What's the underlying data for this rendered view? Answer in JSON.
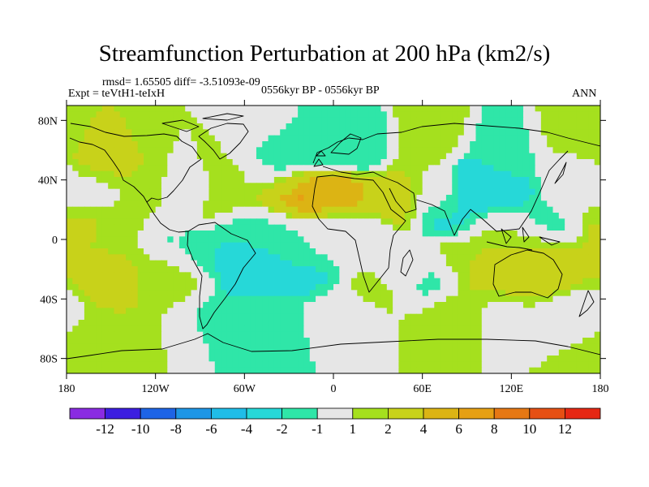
{
  "chart_data": {
    "type": "heatmap",
    "title": "Streamfunction Perturbation at 200 hPa (km2/s)",
    "stats_text": "rmsd= 1.65505 diff= -3.51093e-09",
    "experiment_text": "Expt = teVtH1-teIxH",
    "period_text": "0556kyr BP - 0556kyr BP",
    "season_text": "ANN",
    "projection": "cylindrical equidistant",
    "xlim": [
      -180,
      180
    ],
    "ylim": [
      -90,
      90
    ],
    "x_ticks": [
      {
        "value": -180,
        "label": "180"
      },
      {
        "value": -120,
        "label": "120W"
      },
      {
        "value": -60,
        "label": "60W"
      },
      {
        "value": 0,
        "label": "0"
      },
      {
        "value": 60,
        "label": "60E"
      },
      {
        "value": 120,
        "label": "120E"
      },
      {
        "value": 180,
        "label": "180"
      }
    ],
    "y_ticks": [
      {
        "value": 80,
        "label": "80N"
      },
      {
        "value": 40,
        "label": "40N"
      },
      {
        "value": 0,
        "label": "0"
      },
      {
        "value": -40,
        "label": "40S"
      },
      {
        "value": -80,
        "label": "80S"
      }
    ],
    "colorbar": {
      "colors": [
        "#8a2be2",
        "#3c1ee0",
        "#1e64e6",
        "#1e96e6",
        "#20bde8",
        "#26d8d8",
        "#2fe6a8",
        "#e6e6e6",
        "#a5e01e",
        "#c8d21a",
        "#dcb414",
        "#e6a014",
        "#e67814",
        "#e65014",
        "#e62814"
      ],
      "tick_labels": [
        "-12",
        "-10",
        "-8",
        "-6",
        "-4",
        "-2",
        "-1",
        "1",
        "2",
        "4",
        "6",
        "8",
        "10",
        "12"
      ]
    },
    "field": [
      {
        "lon": 45,
        "lat": -20,
        "value": 1.2
      },
      {
        "lon": 0,
        "lat": 0,
        "value": 0.8
      },
      {
        "lon": -150,
        "lat": 50,
        "value": 2
      },
      {
        "lon": -158,
        "lat": 48,
        "value": 3
      },
      {
        "lon": -128,
        "lat": 38,
        "value": 2
      },
      {
        "lon": -165,
        "lat": 33,
        "value": -1.5
      },
      {
        "lon": -100,
        "lat": 33,
        "value": -1.5
      },
      {
        "lon": -80,
        "lat": 38,
        "value": 1.6
      },
      {
        "lon": -55,
        "lat": 45,
        "value": 1.5
      },
      {
        "lon": -40,
        "lat": 58,
        "value": -1.6
      },
      {
        "lon": -40,
        "lat": 50,
        "value": -2.5
      },
      {
        "lon": -10,
        "lat": 62,
        "value": -1.5
      },
      {
        "lon": 15,
        "lat": 62,
        "value": -2
      },
      {
        "lon": -100,
        "lat": 68,
        "value": 1
      },
      {
        "lon": -60,
        "lat": 75,
        "value": 1
      },
      {
        "lon": 60,
        "lat": 63,
        "value": 1.5
      },
      {
        "lon": 115,
        "lat": 55,
        "value": -1.2
      },
      {
        "lon": 165,
        "lat": 62,
        "value": 1.4
      },
      {
        "lon": -115,
        "lat": 33,
        "value": 1.5
      },
      {
        "lon": -30,
        "lat": 32,
        "value": 3.5
      },
      {
        "lon": -22,
        "lat": 28,
        "value": 6
      },
      {
        "lon": 5,
        "lat": 28,
        "value": 5
      },
      {
        "lon": 40,
        "lat": 28,
        "value": 2.5
      },
      {
        "lon": 75,
        "lat": 32,
        "value": 0.8
      },
      {
        "lon": -90,
        "lat": 25,
        "value": 1.6
      },
      {
        "lon": -168,
        "lat": 15,
        "value": 2.5
      },
      {
        "lon": -150,
        "lat": 8,
        "value": 1.8
      },
      {
        "lon": -130,
        "lat": 8,
        "value": 1.1
      },
      {
        "lon": -110,
        "lat": 0,
        "value": -1.2
      },
      {
        "lon": -40,
        "lat": 8,
        "value": -1.5
      },
      {
        "lon": -20,
        "lat": 0,
        "value": -1.3
      },
      {
        "lon": 10,
        "lat": 5,
        "value": -1.5
      },
      {
        "lon": -75,
        "lat": -5,
        "value": -2
      },
      {
        "lon": -55,
        "lat": -20,
        "value": -2.5
      },
      {
        "lon": -15,
        "lat": -20,
        "value": -2.2
      },
      {
        "lon": -160,
        "lat": -22,
        "value": 2
      },
      {
        "lon": -145,
        "lat": -26,
        "value": 2.8
      },
      {
        "lon": -125,
        "lat": -20,
        "value": 1.6
      },
      {
        "lon": -108,
        "lat": -32,
        "value": 1.2
      },
      {
        "lon": -150,
        "lat": -65,
        "value": 1.8
      },
      {
        "lon": -80,
        "lat": -55,
        "value": -1.8
      },
      {
        "lon": -45,
        "lat": -57,
        "value": -1.4
      },
      {
        "lon": 10,
        "lat": -50,
        "value": 0.4
      },
      {
        "lon": 95,
        "lat": 35,
        "value": -4.5
      },
      {
        "lon": 80,
        "lat": 20,
        "value": -2.5
      },
      {
        "lon": 115,
        "lat": 28,
        "value": -3
      },
      {
        "lon": 140,
        "lat": 15,
        "value": -1.5
      },
      {
        "lon": 160,
        "lat": 40,
        "value": -1
      },
      {
        "lon": 165,
        "lat": 33,
        "value": 1.5
      },
      {
        "lon": 115,
        "lat": 8,
        "value": 1.4
      },
      {
        "lon": 135,
        "lat": -10,
        "value": 2.2
      },
      {
        "lon": 110,
        "lat": -22,
        "value": 3.2
      },
      {
        "lon": 150,
        "lat": -25,
        "value": 2.5
      },
      {
        "lon": 85,
        "lat": -15,
        "value": 1.6
      },
      {
        "lon": 60,
        "lat": -25,
        "value": -2
      },
      {
        "lon": 30,
        "lat": -30,
        "value": 1.5
      },
      {
        "lon": 35,
        "lat": -20,
        "value": 0.5
      },
      {
        "lon": 80,
        "lat": -50,
        "value": 1.5
      },
      {
        "lon": 110,
        "lat": -50,
        "value": 0.8
      },
      {
        "lon": 165,
        "lat": -50,
        "value": -0.8
      },
      {
        "lon": 178,
        "lat": -65,
        "value": 1.3
      },
      {
        "lon": -175,
        "lat": 30,
        "value": 0.5
      },
      {
        "lon": -110,
        "lat": -62,
        "value": 1
      }
    ]
  }
}
